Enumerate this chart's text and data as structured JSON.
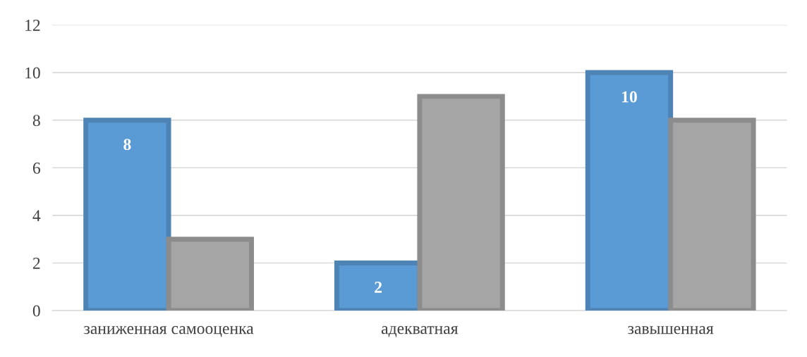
{
  "chart_data": {
    "type": "bar",
    "categories": [
      "заниженная самооценка",
      "адекватная",
      "завышенная"
    ],
    "series": [
      {
        "color": "#5b9bd5",
        "values": [
          8,
          2,
          10
        ],
        "value_labels": [
          "8",
          "2",
          "10"
        ]
      },
      {
        "color": "#a5a5a5",
        "values": [
          3,
          9,
          8
        ]
      }
    ],
    "ylim": [
      0,
      12
    ],
    "yticks": [
      0,
      2,
      4,
      6,
      8,
      10,
      12
    ],
    "grid": "y"
  }
}
